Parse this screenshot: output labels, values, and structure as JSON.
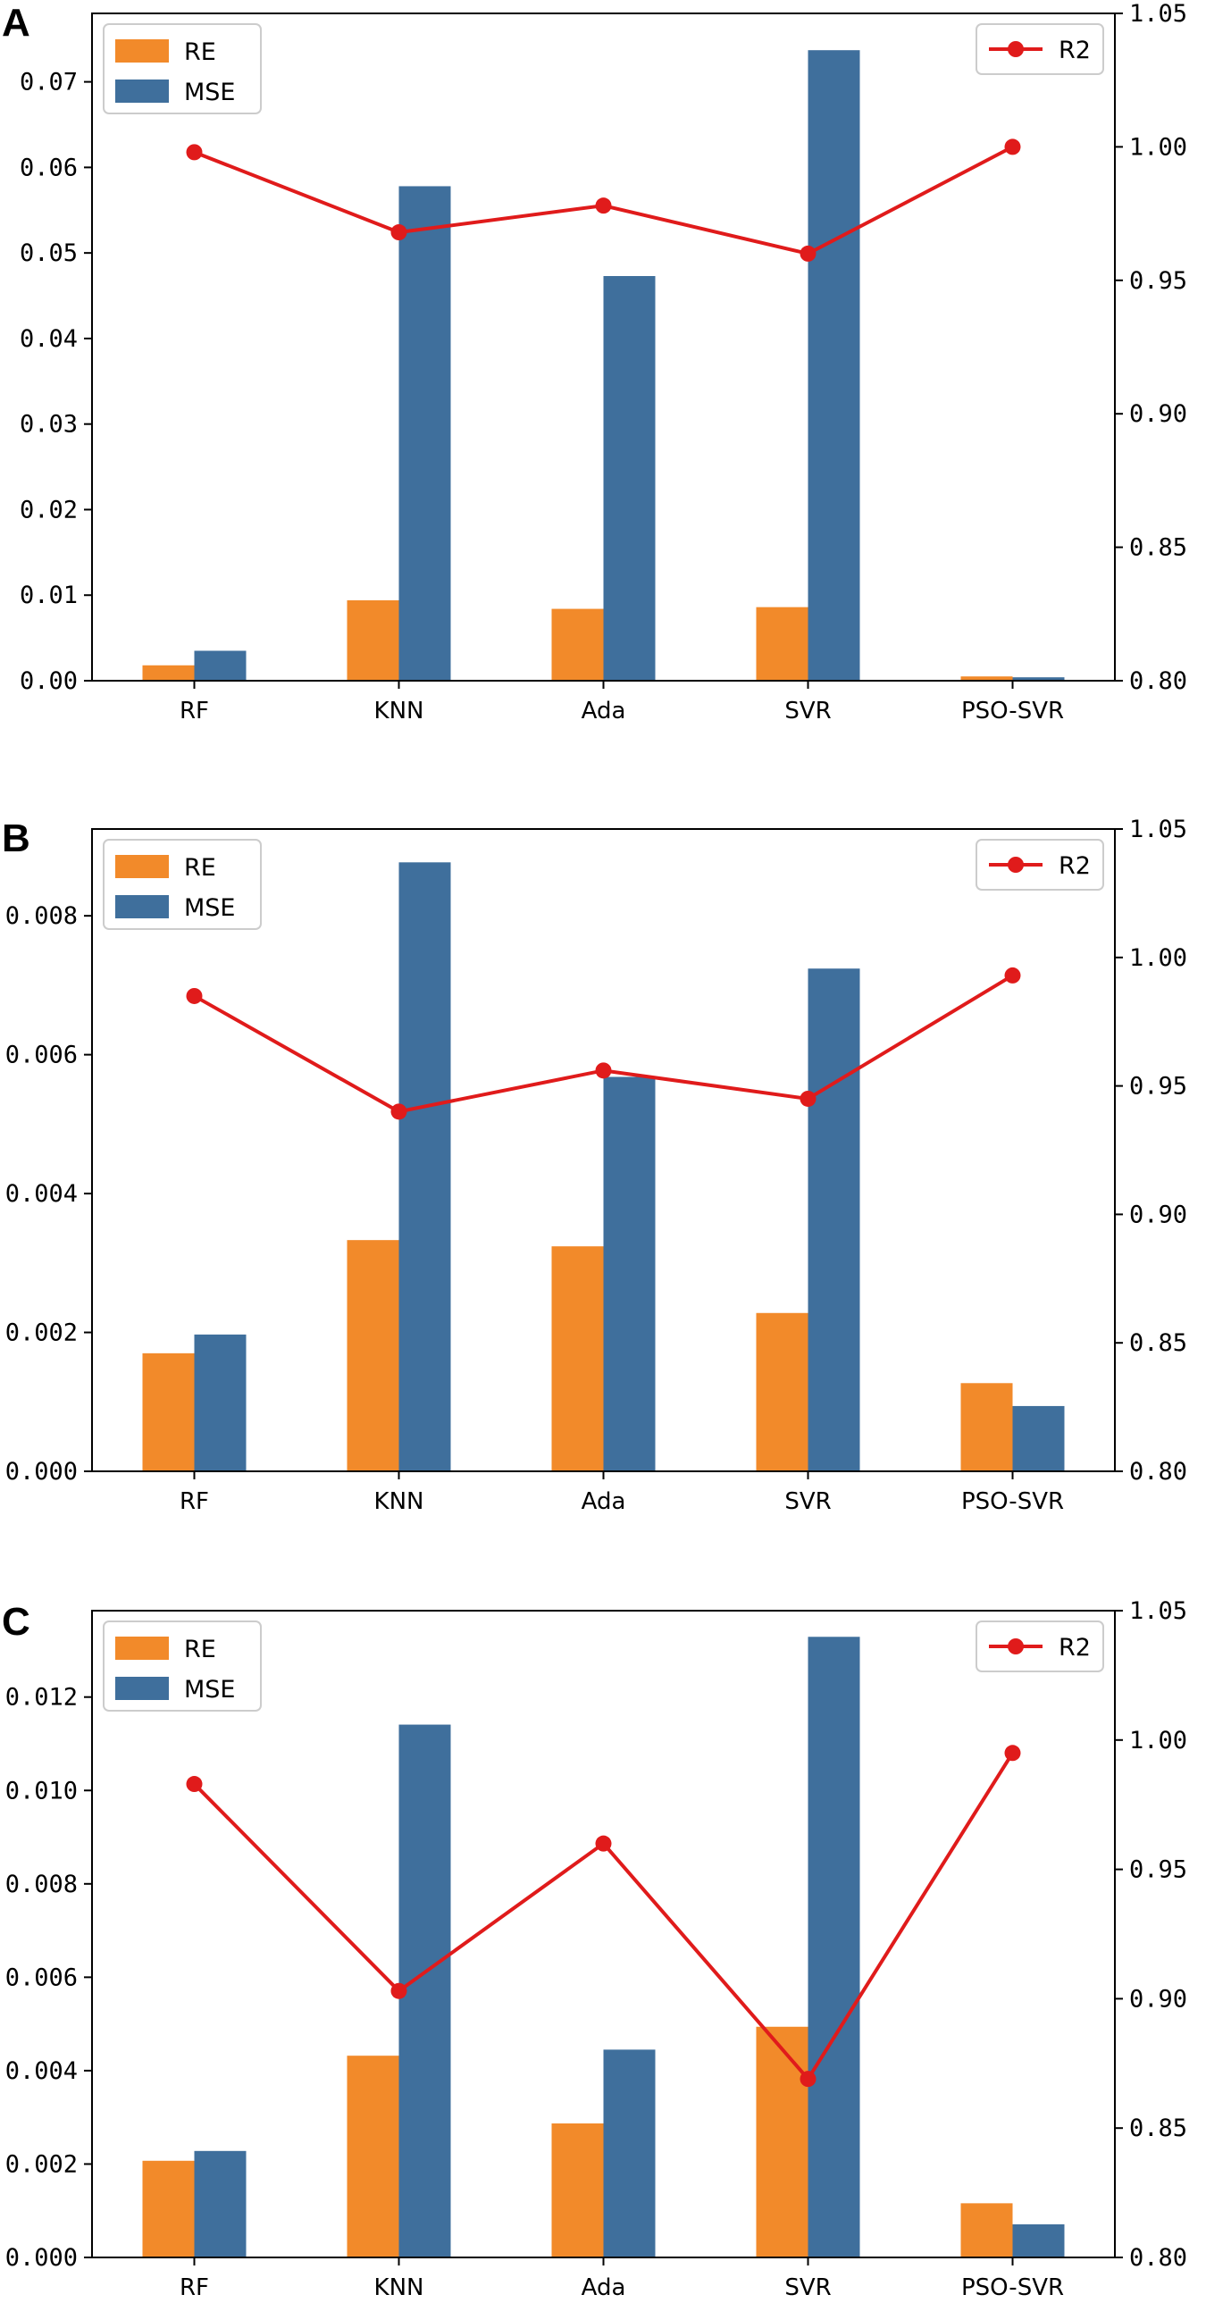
{
  "figure": {
    "colors": {
      "re": "#f28a2a",
      "mse": "#3f6f9c",
      "r2": "#e01b1b",
      "axis": "#000000"
    },
    "categories": [
      "RF",
      "KNN",
      "Ada",
      "SVR",
      "PSO-SVR"
    ]
  },
  "chart_data": [
    {
      "panel": "A",
      "type": "bar",
      "categories": [
        "RF",
        "KNN",
        "Ada",
        "SVR",
        "PSO-SVR"
      ],
      "series": [
        {
          "name": "RE",
          "values": [
            0.0018,
            0.0094,
            0.0084,
            0.0086,
            0.0005
          ]
        },
        {
          "name": "MSE",
          "values": [
            0.0035,
            0.0578,
            0.0473,
            0.0737,
            0.0004
          ]
        }
      ],
      "secondary_series": {
        "name": "R2",
        "type": "line",
        "values": [
          0.998,
          0.968,
          0.978,
          0.96,
          1.0
        ]
      },
      "y_left": {
        "lim": [
          0,
          0.078
        ],
        "ticks": [
          "0.00",
          "0.01",
          "0.02",
          "0.03",
          "0.04",
          "0.05",
          "0.06",
          "0.07"
        ]
      },
      "y_right": {
        "lim": [
          0.8,
          1.05
        ],
        "ticks": [
          "0.80",
          "0.85",
          "0.90",
          "0.95",
          "1.00",
          "1.05"
        ]
      },
      "legend_left": "top-left",
      "legend_right": "top-right"
    },
    {
      "panel": "B",
      "type": "bar",
      "categories": [
        "RF",
        "KNN",
        "Ada",
        "SVR",
        "PSO-SVR"
      ],
      "series": [
        {
          "name": "RE",
          "values": [
            0.0017,
            0.00333,
            0.00324,
            0.00228,
            0.00127
          ]
        },
        {
          "name": "MSE",
          "values": [
            0.00197,
            0.00877,
            0.00568,
            0.00724,
            0.00094
          ]
        }
      ],
      "secondary_series": {
        "name": "R2",
        "type": "line",
        "values": [
          0.985,
          0.94,
          0.956,
          0.945,
          0.993
        ]
      },
      "y_left": {
        "lim": [
          0,
          0.00925
        ],
        "ticks": [
          "0.000",
          "0.002",
          "0.004",
          "0.006",
          "0.008"
        ]
      },
      "y_right": {
        "lim": [
          0.8,
          1.05
        ],
        "ticks": [
          "0.80",
          "0.85",
          "0.90",
          "0.95",
          "1.00",
          "1.05"
        ]
      },
      "legend_left": "top-left",
      "legend_right": "top-right"
    },
    {
      "panel": "C",
      "type": "bar",
      "categories": [
        "RF",
        "KNN",
        "Ada",
        "SVR",
        "PSO-SVR"
      ],
      "series": [
        {
          "name": "RE",
          "values": [
            0.00207,
            0.00432,
            0.00287,
            0.00494,
            0.00116
          ]
        },
        {
          "name": "MSE",
          "values": [
            0.00228,
            0.01141,
            0.00445,
            0.01329,
            0.00071
          ]
        }
      ],
      "secondary_series": {
        "name": "R2",
        "type": "line",
        "values": [
          0.983,
          0.903,
          0.96,
          0.869,
          0.995
        ]
      },
      "y_left": {
        "lim": [
          0,
          0.01385
        ],
        "ticks": [
          "0.000",
          "0.002",
          "0.004",
          "0.006",
          "0.008",
          "0.010",
          "0.012"
        ]
      },
      "y_right": {
        "lim": [
          0.8,
          1.05
        ],
        "ticks": [
          "0.80",
          "0.85",
          "0.90",
          "0.95",
          "1.00",
          "1.05"
        ]
      },
      "legend_left": "top-left",
      "legend_right": "top-right"
    }
  ]
}
